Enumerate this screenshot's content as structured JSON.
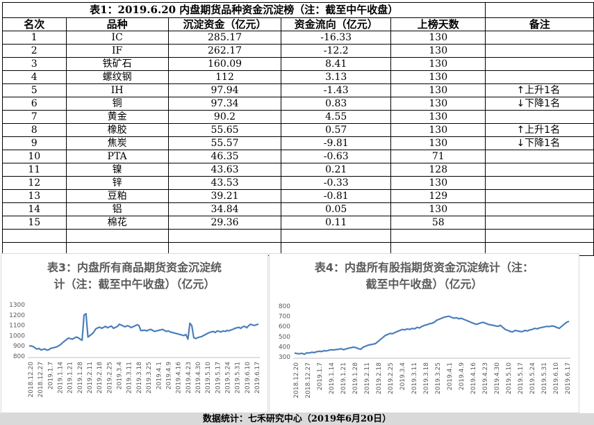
{
  "table": {
    "title": "表1：2019.6.20 内盘期货品种资金沉淀榜（注：截至中午收盘）",
    "headers": [
      "名次",
      "品种",
      "沉淀资金（亿元）",
      "资金流向（亿元）",
      "上榜天数",
      "备注"
    ],
    "rows": [
      {
        "rank": "1",
        "name": "IC",
        "amount": "285.17",
        "flow": "-16.33",
        "days": "130",
        "note": ""
      },
      {
        "rank": "2",
        "name": "IF",
        "amount": "262.17",
        "flow": "-12.2",
        "days": "130",
        "note": ""
      },
      {
        "rank": "3",
        "name": "铁矿石",
        "amount": "160.09",
        "flow": "8.41",
        "days": "130",
        "note": ""
      },
      {
        "rank": "4",
        "name": "螺纹钢",
        "amount": "112",
        "flow": "3.13",
        "days": "130",
        "note": ""
      },
      {
        "rank": "5",
        "name": "IH",
        "amount": "97.94",
        "flow": "-1.43",
        "days": "130",
        "note": "↑上升1名"
      },
      {
        "rank": "6",
        "name": "铜",
        "amount": "97.34",
        "flow": "0.83",
        "days": "130",
        "note": "↓下降1名"
      },
      {
        "rank": "7",
        "name": "黄金",
        "amount": "90.2",
        "flow": "4.55",
        "days": "130",
        "note": ""
      },
      {
        "rank": "8",
        "name": "橡胶",
        "amount": "55.65",
        "flow": "0.57",
        "days": "130",
        "note": "↑上升1名"
      },
      {
        "rank": "9",
        "name": "焦炭",
        "amount": "55.57",
        "flow": "-9.81",
        "days": "130",
        "note": "↓下降1名"
      },
      {
        "rank": "10",
        "name": "PTA",
        "amount": "46.35",
        "flow": "-0.63",
        "days": "71",
        "note": ""
      },
      {
        "rank": "11",
        "name": "镍",
        "amount": "43.63",
        "flow": "0.21",
        "days": "128",
        "note": ""
      },
      {
        "rank": "12",
        "name": "锌",
        "amount": "43.53",
        "flow": "-0.33",
        "days": "130",
        "note": ""
      },
      {
        "rank": "13",
        "name": "豆粕",
        "amount": "39.21",
        "flow": "-0.81",
        "days": "129",
        "note": ""
      },
      {
        "rank": "14",
        "name": "铝",
        "amount": "34.84",
        "flow": "0.05",
        "days": "130",
        "note": ""
      },
      {
        "rank": "15",
        "name": "棉花",
        "amount": "29.36",
        "flow": "0.11",
        "days": "58",
        "note": ""
      }
    ]
  },
  "footer": "数据统计：七禾研究中心（2019年6月20日）",
  "line_color": "#4a7ebb",
  "chart_data": [
    {
      "type": "line",
      "title": "表3：内盘所有商品期货资金沉淀统计（注：截至中午收盘）（亿元）",
      "title_lines": [
        "表3：内盘所有商品期货资金沉淀统",
        "计（注：截至中午收盘）（亿元）"
      ],
      "x_ticks": [
        "2018.12.20",
        "2018.12.27",
        "2019.1.7",
        "2019.1.14",
        "2019.1.21",
        "2019.1.28",
        "2019.2.11",
        "2019.2.18",
        "2019.2.25",
        "2019.3.4",
        "2019.3.11",
        "2019.3.18",
        "2019.3.25",
        "2019.4.1",
        "2019.4.9",
        "2019.4.16",
        "2019.4.23",
        "2019.4.30",
        "2019.5.10",
        "2019.5.17",
        "2019.5.24",
        "2019.5.31",
        "2019.6.10",
        "2019.6.17"
      ],
      "y_ticks": [
        800,
        900,
        1000,
        1100,
        1200,
        1300
      ],
      "ylim": [
        800,
        1300
      ],
      "grid": false,
      "values": [
        900,
        898,
        893,
        880,
        868,
        875,
        860,
        865,
        870,
        858,
        862,
        876,
        880,
        885,
        890,
        900,
        912,
        930,
        945,
        960,
        975,
        970,
        965,
        975,
        985,
        980,
        965,
        955,
        1200,
        1212,
        985,
        1000,
        1015,
        1035,
        1065,
        1075,
        1082,
        1070,
        1080,
        1090,
        1075,
        1085,
        1092,
        1070,
        1080,
        1088,
        1110,
        1102,
        1092,
        1085,
        1095,
        1090,
        1078,
        1085,
        1094,
        1105,
        1098,
        1048,
        1050,
        1052,
        1045,
        1055,
        1060,
        1050,
        1040,
        1045,
        1050,
        1055,
        1060,
        1050,
        1040,
        1045,
        1035,
        1030,
        1025,
        1020,
        1015,
        1010,
        1005,
        1000,
        1010,
        965,
        1120,
        1095,
        980,
        970,
        980,
        985,
        990,
        1000,
        1010,
        1020,
        1030,
        1035,
        1040,
        1030,
        1045,
        1040,
        1035,
        1045,
        1040,
        1050,
        1045,
        1055,
        1060,
        1070,
        1075,
        1080,
        1070,
        1085,
        1090,
        1075,
        1095,
        1110,
        1102,
        1098,
        1105,
        1112
      ]
    },
    {
      "type": "line",
      "title": "表4：内盘所有股指期货资金沉淀统计（注：截至中午收盘）（亿元）",
      "title_lines": [
        "表4：内盘所有股指期货资金沉淀统计（注：",
        "截至中午收盘）（亿元）"
      ],
      "x_ticks": [
        "2018.12.20",
        "2018.12.27",
        "2019.1.7",
        "2019.1.14",
        "2019.1.21",
        "2019.1.28",
        "2019.2.11",
        "2019.2.18",
        "2019.2.25",
        "2019.3.4",
        "2019.3.11",
        "2019.3.18",
        "2019.3.25",
        "2019.4.1",
        "2019.4.9",
        "2019.4.16",
        "2019.4.23",
        "2019.4.30",
        "2019.5.10",
        "2019.5.17",
        "2019.5.24",
        "2019.5.31",
        "2019.6.10",
        "2019.6.17"
      ],
      "y_ticks": [
        300,
        400,
        500,
        600,
        700,
        800
      ],
      "ylim": [
        300,
        800
      ],
      "grid": false,
      "values": [
        338,
        332,
        330,
        335,
        325,
        340,
        338,
        345,
        342,
        350,
        355,
        352,
        360,
        358,
        365,
        370,
        368,
        372,
        375,
        380,
        370,
        378,
        385,
        390,
        395,
        392,
        380,
        375,
        395,
        405,
        415,
        420,
        425,
        430,
        450,
        470,
        490,
        510,
        520,
        530,
        528,
        540,
        550,
        560,
        570,
        565,
        575,
        570,
        580,
        575,
        590,
        585,
        600,
        610,
        615,
        625,
        630,
        640,
        660,
        670,
        680,
        690,
        695,
        700,
        690,
        680,
        685,
        675,
        680,
        670,
        660,
        650,
        640,
        630,
        620,
        625,
        635,
        640,
        630,
        620,
        615,
        610,
        605,
        600,
        610,
        590,
        570,
        560,
        550,
        545,
        560,
        555,
        550,
        548,
        560,
        555,
        565,
        570,
        580,
        575,
        585,
        590,
        595,
        600,
        598,
        605,
        600,
        590,
        580,
        600,
        620,
        640,
        650
      ]
    }
  ]
}
